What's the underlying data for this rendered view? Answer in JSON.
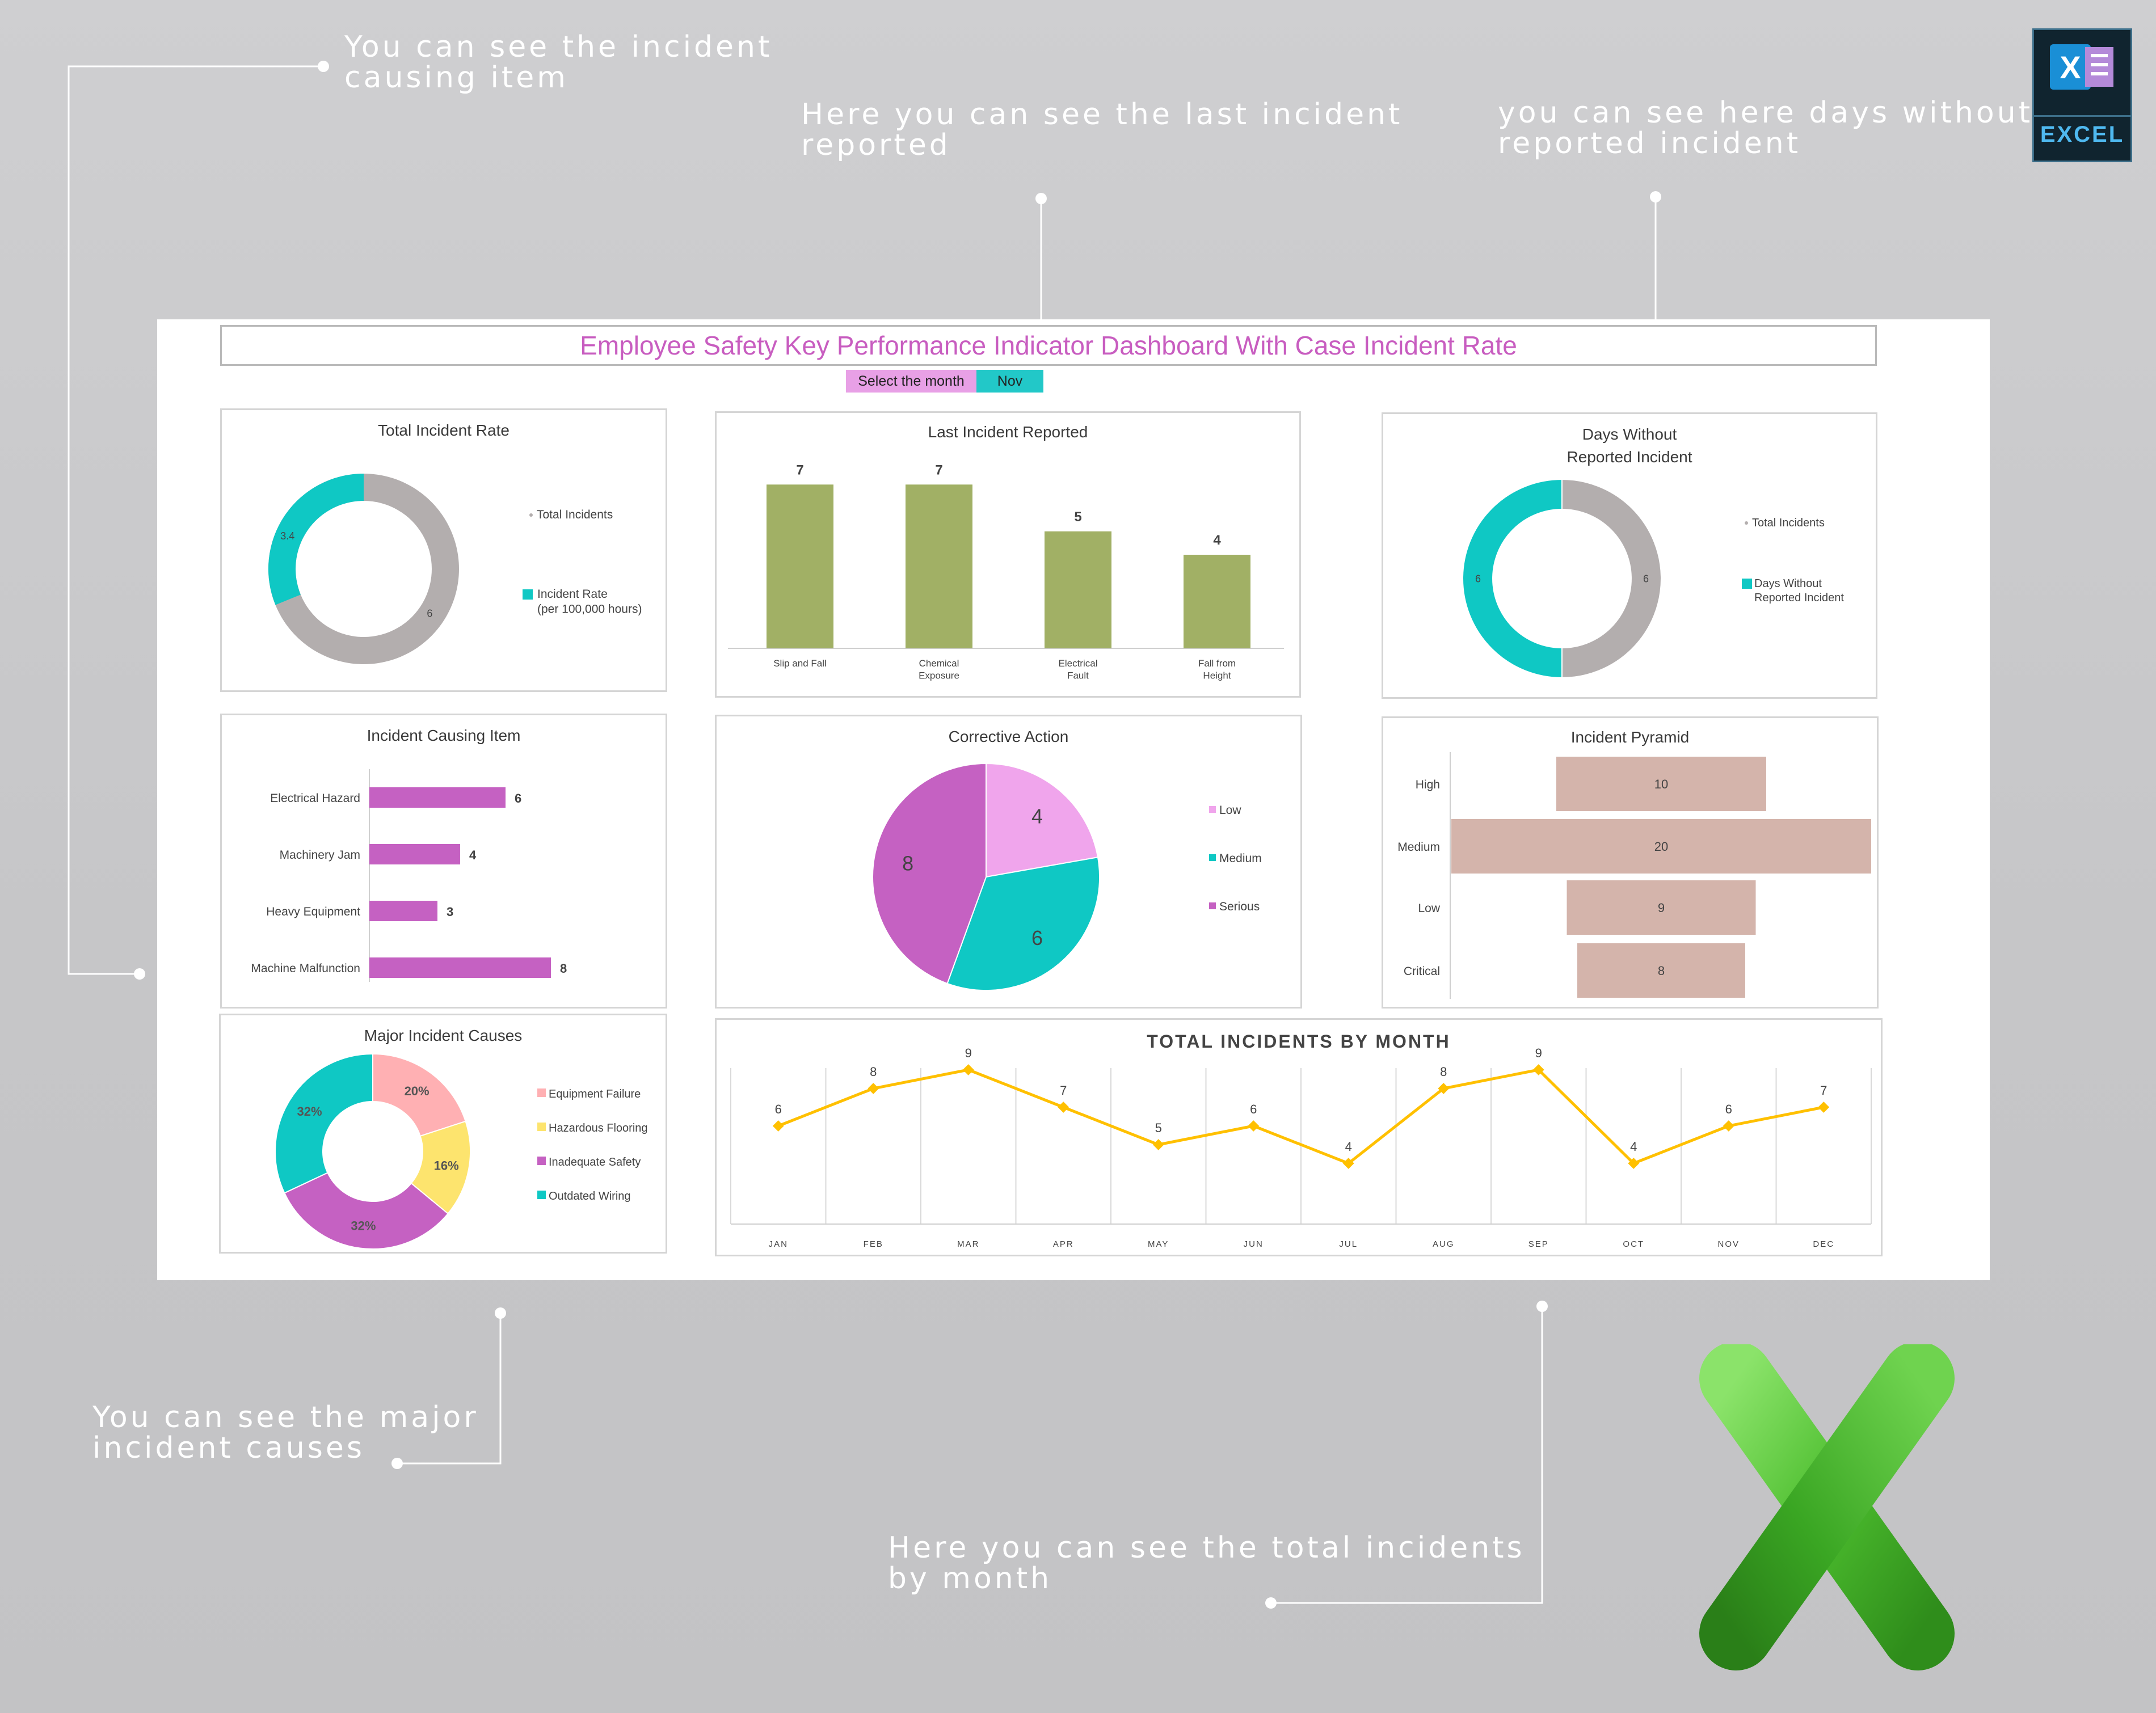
{
  "callouts": {
    "causing_item": "You can see the incident\ncausing item",
    "last_incident": "Here you can see the last incident\nreported",
    "days_without": "you can see here days without\nreported incident",
    "major_causes": "You can see the major\nincident causes",
    "by_month": "Here you can see the total incidents\nby month"
  },
  "excel_badge": {
    "label": "EXCEL",
    "letter": "X"
  },
  "dashboard": {
    "title": "Employee Safety Key Performance Indicator Dashboard With Case Incident Rate",
    "month_selector": {
      "label": "Select the month",
      "value": "Nov"
    }
  },
  "colors": {
    "teal": "#0fc8c4",
    "grey": "#b3aeae",
    "olive": "#a1b065",
    "magenta": "#c561c2",
    "pink": "#f0a5ec",
    "tan": "#d4b4ab",
    "rose": "#ffb0b3",
    "yellow": "#fde46e",
    "orange": "#ffc000"
  },
  "chart_data": [
    {
      "id": "total_incident_rate",
      "type": "pie",
      "title": "Total Incident Rate",
      "series": [
        {
          "name": "Total Incidents",
          "value": 6,
          "label": "6"
        },
        {
          "name": "Incident Rate\n(per 100,000 hours)",
          "value": 3.4,
          "label": "3.4"
        }
      ],
      "legend_position": "right"
    },
    {
      "id": "last_incident_reported",
      "type": "bar",
      "title": "Last Incident Reported",
      "categories": [
        "Slip and Fall",
        "Chemical\nExposure",
        "Electrical\nFault",
        "Fall from\nHeight"
      ],
      "values": [
        7,
        7,
        5,
        4
      ],
      "ylim": [
        0,
        8
      ]
    },
    {
      "id": "days_without_reported_incident",
      "type": "pie",
      "title": "Days Without\nReported Incident",
      "series": [
        {
          "name": "Total Incidents",
          "value": 6,
          "label": "6"
        },
        {
          "name": "Days Without\nReported Incident",
          "value": 6,
          "label": "6"
        }
      ],
      "legend_position": "right"
    },
    {
      "id": "incident_causing_item",
      "type": "bar",
      "orientation": "horizontal",
      "title": "Incident Causing Item",
      "categories": [
        "Electrical Hazard",
        "Machinery Jam",
        "Heavy Equipment",
        "Machine Malfunction"
      ],
      "values": [
        6,
        4,
        3,
        8
      ]
    },
    {
      "id": "corrective_action",
      "type": "pie",
      "title": "Corrective Action",
      "series": [
        {
          "name": "Low",
          "value": 4,
          "label": "4"
        },
        {
          "name": "Medium",
          "value": 6,
          "label": "6"
        },
        {
          "name": "Serious",
          "value": 8,
          "label": "8"
        }
      ],
      "legend_position": "right"
    },
    {
      "id": "incident_pyramid",
      "type": "bar",
      "orientation": "horizontal",
      "title": "Incident Pyramid",
      "categories": [
        "High",
        "Medium",
        "Low",
        "Critical"
      ],
      "values": [
        10,
        20,
        9,
        8
      ]
    },
    {
      "id": "major_incident_causes",
      "type": "pie",
      "title": "Major Incident Causes",
      "series": [
        {
          "name": "Equipment Failure",
          "value": 20,
          "label": "20%"
        },
        {
          "name": "Hazardous Flooring",
          "value": 16,
          "label": "16%"
        },
        {
          "name": "Inadequate Safety",
          "value": 32,
          "label": "32%"
        },
        {
          "name": "Outdated Wiring",
          "value": 32,
          "label": "32%"
        }
      ],
      "legend_position": "right"
    },
    {
      "id": "total_incidents_by_month",
      "type": "line",
      "title": "TOTAL INCIDENTS BY MONTH",
      "x": [
        "JAN",
        "FEB",
        "MAR",
        "APR",
        "MAY",
        "JUN",
        "JUL",
        "AUG",
        "SEP",
        "OCT",
        "NOV",
        "DEC"
      ],
      "values": [
        6,
        8,
        9,
        7,
        5,
        6,
        4,
        8,
        9,
        4,
        6,
        7
      ],
      "ylim": [
        0,
        10
      ],
      "grid": "vertical"
    }
  ]
}
